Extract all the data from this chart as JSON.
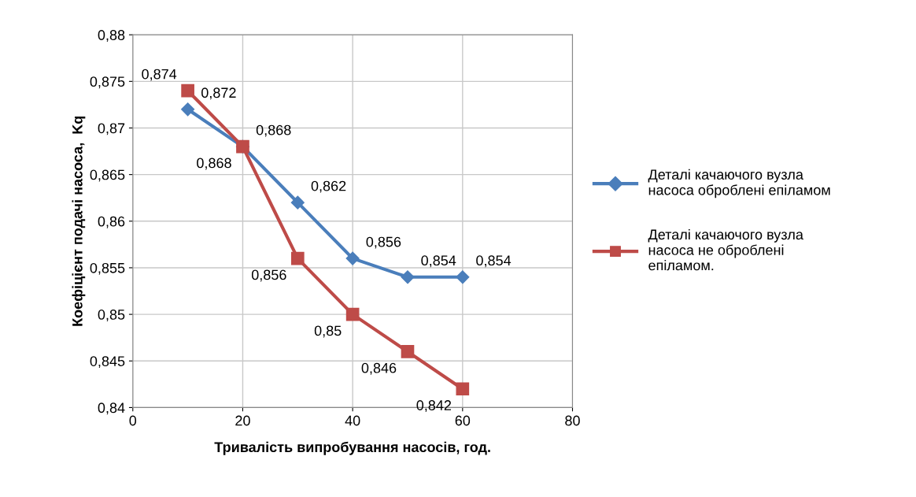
{
  "chart_data": {
    "type": "line",
    "xlabel": "Тривалість випробування насосів, год.",
    "ylabel": "Коефіцієнт подачі насоса,  Kq",
    "xlim": [
      0,
      80
    ],
    "xticks": [
      0,
      20,
      40,
      60,
      80
    ],
    "ylim": [
      0.84,
      0.88
    ],
    "yticks": [
      {
        "value": 0.84,
        "label": "0,84"
      },
      {
        "value": 0.845,
        "label": "0,845"
      },
      {
        "value": 0.85,
        "label": "0,85"
      },
      {
        "value": 0.855,
        "label": "0,855"
      },
      {
        "value": 0.86,
        "label": "0,86"
      },
      {
        "value": 0.865,
        "label": "0,865"
      },
      {
        "value": 0.87,
        "label": "0,87"
      },
      {
        "value": 0.875,
        "label": "0,875"
      },
      {
        "value": 0.88,
        "label": "0,88"
      }
    ],
    "x": [
      10,
      20,
      30,
      40,
      50,
      60
    ],
    "grid": true,
    "legend": "right",
    "line_style": "solid",
    "series": [
      {
        "name": "Деталі качаючого вузла насоса оброблені епіламом",
        "color": "#4a7ebb",
        "marker": "diamond",
        "values": [
          0.872,
          0.868,
          0.862,
          0.856,
          0.854,
          0.854
        ],
        "value_labels": [
          "0,872",
          "0,868",
          "0,862",
          "0,856",
          "0,854",
          "0,854"
        ]
      },
      {
        "name": "Деталі качаючого вузла насоса не оброблені епіламом.",
        "color": "#be4b48",
        "marker": "square",
        "values": [
          0.874,
          0.868,
          0.856,
          0.85,
          0.846,
          0.842
        ],
        "value_labels": [
          "0,874",
          "0,868",
          "0,856",
          "0,85",
          "0,846",
          "0,842"
        ]
      }
    ]
  }
}
